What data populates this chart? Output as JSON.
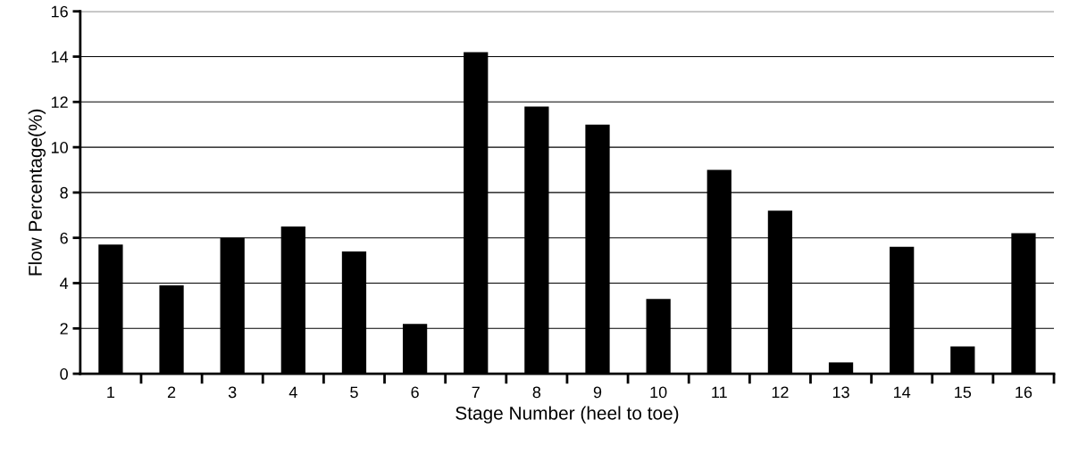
{
  "chart_data": {
    "type": "bar",
    "xlabel": "Stage Number (heel to toe)",
    "ylabel": "Flow Percentage(%)",
    "categories": [
      "1",
      "2",
      "3",
      "4",
      "5",
      "6",
      "7",
      "8",
      "9",
      "10",
      "11",
      "12",
      "13",
      "14",
      "15",
      "16"
    ],
    "values": [
      5.7,
      3.9,
      6.0,
      6.5,
      5.4,
      2.2,
      14.2,
      11.8,
      11.0,
      3.3,
      9.0,
      7.2,
      0.5,
      5.6,
      1.2,
      6.2
    ],
    "color": "#000000",
    "ylim": [
      0,
      16
    ],
    "yticks": [
      0,
      2,
      4,
      6,
      8,
      10,
      12,
      14,
      16
    ],
    "grid": "y"
  }
}
